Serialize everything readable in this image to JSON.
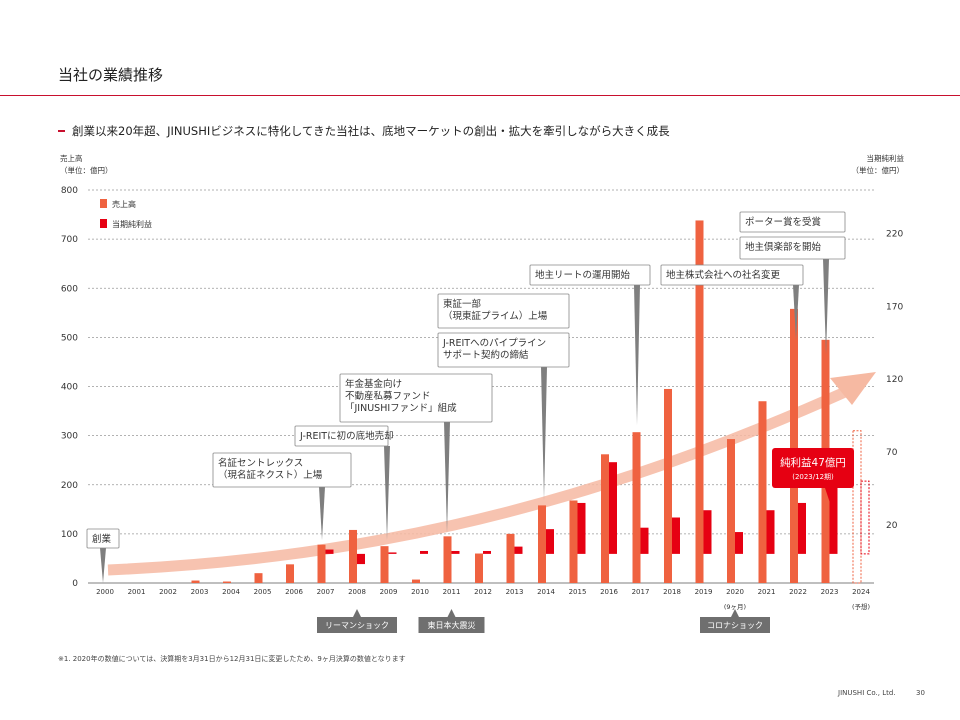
{
  "header": {
    "title": "当社の業績推移",
    "subtitle": "創業以来20年超、JINUSHIビジネスに特化してきた当社は、底地マーケットの創出・拡大を牽引しながら大きく成長"
  },
  "footer": {
    "footnote": "※1. 2020年の数値については、決算期を3月31日から12月31日に変更したため、9ヶ月決算の数値となります",
    "company": "JINUSHI Co., Ltd.",
    "page_number": "30"
  },
  "colors": {
    "sales": "#ef6240",
    "net_income": "#e60012",
    "accent": "#c8102e",
    "arrow": "#f6b9a2",
    "callout_border": "#888888",
    "pointer": "#7f7f7f",
    "event": "#6f6f6f"
  },
  "chart_data": {
    "type": "bar",
    "ylabel": "売上高\n（単位：億円）",
    "y2label": "当期純利益\n（単位：億円）",
    "ylim": [
      0,
      800
    ],
    "yticks": [
      0,
      100,
      200,
      300,
      400,
      500,
      600,
      700,
      800
    ],
    "y2lim": [
      -20,
      250
    ],
    "y2ticks": [
      20,
      70,
      120,
      170,
      220
    ],
    "grid": true,
    "legend_position": "top-left",
    "categories": [
      "2000",
      "2001",
      "2002",
      "2003",
      "2004",
      "2005",
      "2006",
      "2007",
      "2008",
      "2009",
      "2010",
      "2011",
      "2012",
      "2013",
      "2014",
      "2015",
      "2016",
      "2017",
      "2018",
      "2019",
      "2020",
      "2021",
      "2022",
      "2023",
      "2024"
    ],
    "category_notes": {
      "2020": "(9ヶ月)",
      "2024": "(予想)"
    },
    "series": [
      {
        "name": "売上高",
        "axis": "left",
        "color": "#ef6240",
        "values": [
          0,
          0,
          0,
          5,
          3,
          20,
          38,
          78,
          108,
          75,
          7,
          95,
          60,
          100,
          158,
          168,
          262,
          307,
          395,
          738,
          293,
          370,
          558,
          495,
          310
        ]
      },
      {
        "name": "当期純利益",
        "axis": "right",
        "color": "#e60012",
        "values": [
          0,
          0,
          0,
          0,
          0,
          0,
          0,
          3,
          -7,
          1,
          2,
          2,
          2,
          5,
          17,
          35,
          63,
          18,
          25,
          30,
          15,
          30,
          35,
          47,
          50
        ]
      }
    ],
    "forecast_year": "2024",
    "callouts": [
      {
        "year": "2000",
        "lines": [
          "創業"
        ]
      },
      {
        "year": "2007",
        "lines": [
          "名証セントレックス",
          "（現名証ネクスト）上場"
        ]
      },
      {
        "year": "2009",
        "lines": [
          "J-REITに初の底地売却"
        ]
      },
      {
        "year": "2011",
        "lines": [
          "年金基金向け",
          "不動産私募ファンド",
          "「JINUSHIファンド」組成"
        ]
      },
      {
        "year": "2014",
        "lines": [
          "J-REITへのパイプライン",
          "サポート契約の締結"
        ]
      },
      {
        "year": "2014",
        "lines": [
          "東証一部",
          "（現東証プライム）上場"
        ]
      },
      {
        "year": "2017",
        "lines": [
          "地主リートの運用開始"
        ]
      },
      {
        "year": "2022",
        "lines": [
          "地主株式会社への社名変更"
        ]
      },
      {
        "year": "2023",
        "lines": [
          "地主倶楽部を開始"
        ]
      },
      {
        "year": "2023",
        "lines": [
          "ポーター賞を受賞"
        ]
      }
    ],
    "highlight": {
      "year": "2023",
      "title": "純利益47億円",
      "sub": "(2023/12期)"
    },
    "events": [
      {
        "year": "2008",
        "label": "リーマンショック"
      },
      {
        "year": "2011",
        "label": "東日本大震災"
      },
      {
        "year": "2020",
        "label": "コロナショック"
      }
    ]
  }
}
